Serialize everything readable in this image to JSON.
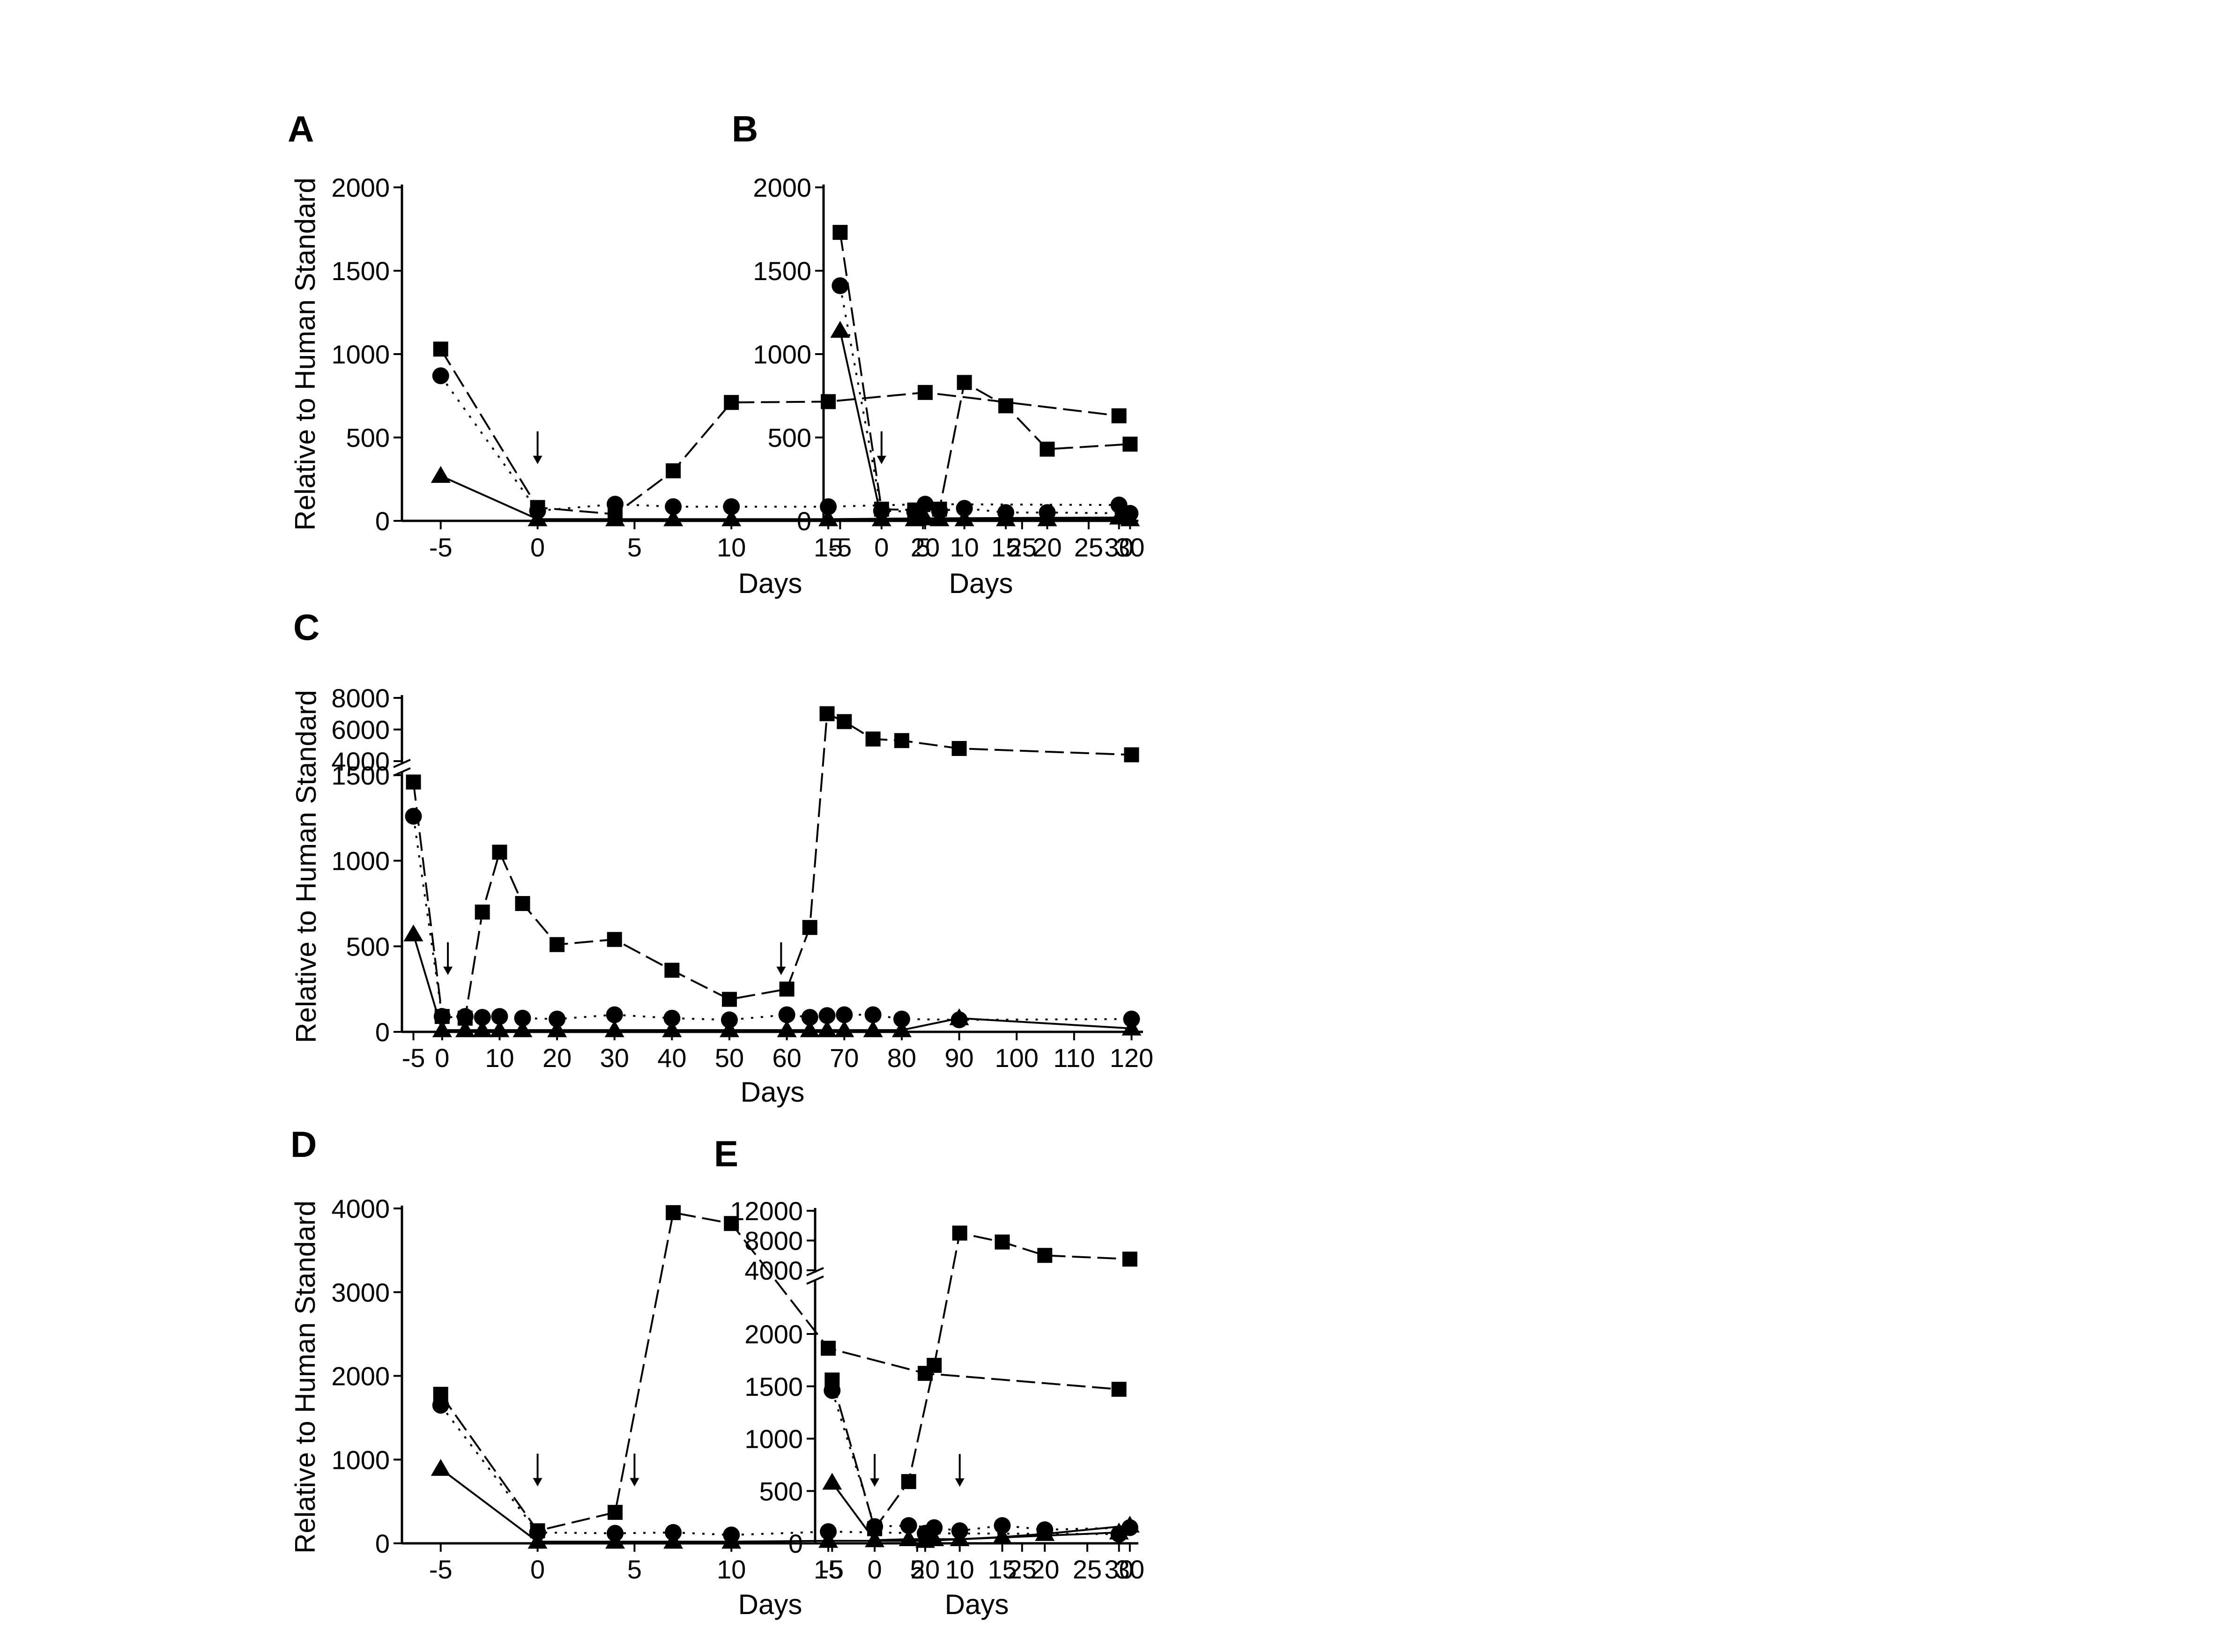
{
  "chart_data": [
    {
      "panel": "A",
      "type": "line",
      "xlabel": "Days",
      "ylabel": "Relative to Human Standard",
      "xticks": [
        -5,
        0,
        5,
        10,
        15,
        20,
        25,
        30
      ],
      "yticks": [
        0,
        500,
        1000,
        1500,
        2000
      ],
      "xlim": [
        -7,
        31
      ],
      "ylim": [
        0,
        2000
      ],
      "arrows_at_day": [
        0
      ],
      "series": [
        {
          "marker": "square",
          "x": [
            -5,
            0,
            4,
            7,
            10,
            15,
            20,
            30
          ],
          "y": [
            1030,
            80,
            40,
            300,
            710,
            715,
            770,
            630
          ]
        },
        {
          "marker": "circle",
          "x": [
            -5,
            0,
            4,
            7,
            10,
            15,
            20,
            30
          ],
          "y": [
            870,
            60,
            100,
            85,
            85,
            85,
            100,
            95
          ]
        },
        {
          "marker": "triangle",
          "x": [
            -5,
            0,
            4,
            7,
            10,
            15,
            20,
            30
          ],
          "y": [
            270,
            10,
            10,
            10,
            10,
            10,
            15,
            20
          ]
        }
      ]
    },
    {
      "panel": "B",
      "type": "line",
      "xlabel": "Days",
      "ylabel": "",
      "xticks": [
        -5,
        0,
        5,
        10,
        15,
        20,
        25,
        30
      ],
      "yticks": [
        0,
        500,
        1000,
        1500,
        2000
      ],
      "xlim": [
        -7,
        31
      ],
      "ylim": [
        0,
        2000
      ],
      "arrows_at_day": [
        0
      ],
      "series": [
        {
          "marker": "square",
          "x": [
            -5,
            0,
            4,
            7,
            10,
            15,
            20,
            30
          ],
          "y": [
            1730,
            70,
            65,
            70,
            830,
            690,
            430,
            460
          ]
        },
        {
          "marker": "circle",
          "x": [
            -5,
            0,
            4,
            7,
            10,
            15,
            20,
            30
          ],
          "y": [
            1410,
            60,
            55,
            60,
            75,
            50,
            50,
            45
          ]
        },
        {
          "marker": "triangle",
          "x": [
            -5,
            0,
            4,
            7,
            10,
            15,
            20,
            30
          ],
          "y": [
            1140,
            10,
            10,
            10,
            10,
            10,
            10,
            10
          ]
        }
      ]
    },
    {
      "panel": "C",
      "type": "line",
      "xlabel": "Days",
      "ylabel": "Relative to Human Standard",
      "xticks": [
        -5,
        0,
        10,
        20,
        30,
        40,
        50,
        60,
        70,
        80,
        90,
        100,
        110,
        120
      ],
      "yticks_lower": [
        0,
        500,
        1000,
        1500
      ],
      "yticks_upper": [
        4000,
        6000,
        8000
      ],
      "broken_axis": true,
      "xlim": [
        -7,
        122
      ],
      "arrows_at_day": [
        1,
        59
      ],
      "series": [
        {
          "marker": "square",
          "x": [
            -5,
            0,
            4,
            7,
            10,
            14,
            20,
            30,
            40,
            50,
            60,
            64,
            67,
            70,
            75,
            80,
            90,
            120
          ],
          "y": [
            1460,
            90,
            80,
            700,
            1050,
            750,
            510,
            540,
            360,
            190,
            250,
            610,
            7000,
            6500,
            5400,
            5300,
            4800,
            4400
          ]
        },
        {
          "marker": "circle",
          "x": [
            -5,
            0,
            4,
            7,
            10,
            14,
            20,
            30,
            40,
            50,
            60,
            64,
            67,
            70,
            75,
            80,
            90,
            120
          ],
          "y": [
            1260,
            90,
            90,
            85,
            90,
            80,
            75,
            100,
            80,
            70,
            100,
            85,
            95,
            100,
            100,
            75,
            70,
            75
          ]
        },
        {
          "marker": "triangle",
          "x": [
            -5,
            0,
            4,
            7,
            10,
            14,
            20,
            30,
            40,
            50,
            60,
            64,
            67,
            70,
            75,
            80,
            90,
            120
          ],
          "y": [
            570,
            10,
            10,
            10,
            10,
            10,
            10,
            10,
            10,
            10,
            10,
            10,
            10,
            10,
            10,
            10,
            80,
            20
          ]
        }
      ]
    },
    {
      "panel": "D",
      "type": "line",
      "xlabel": "Days",
      "ylabel": "Relative to Human Standard",
      "xticks": [
        -5,
        0,
        5,
        10,
        15,
        20,
        25,
        30
      ],
      "yticks": [
        0,
        1000,
        2000,
        3000,
        4000
      ],
      "xlim": [
        -7,
        31
      ],
      "ylim": [
        0,
        4000
      ],
      "arrows_at_day": [
        0,
        5
      ],
      "series": [
        {
          "marker": "square",
          "x": [
            -5,
            0,
            4,
            7,
            10,
            15,
            20,
            30
          ],
          "y": [
            1780,
            150,
            370,
            3950,
            3820,
            2330,
            2030,
            1840
          ]
        },
        {
          "marker": "circle",
          "x": [
            -5,
            0,
            4,
            7,
            10,
            15,
            20,
            30
          ],
          "y": [
            1650,
            130,
            120,
            130,
            100,
            140,
            120,
            110
          ]
        },
        {
          "marker": "triangle",
          "x": [
            -5,
            0,
            4,
            7,
            10,
            15,
            20,
            30
          ],
          "y": [
            890,
            20,
            20,
            20,
            20,
            30,
            30,
            130
          ]
        }
      ]
    },
    {
      "panel": "E",
      "type": "line",
      "xlabel": "Days",
      "ylabel": "",
      "xticks": [
        -5,
        0,
        5,
        10,
        15,
        20,
        25,
        30
      ],
      "yticks_lower": [
        0,
        500,
        1000,
        1500,
        2000
      ],
      "yticks_upper": [
        4000,
        8000,
        12000
      ],
      "broken_axis": true,
      "xlim": [
        -7,
        31
      ],
      "arrows_at_day": [
        0,
        10
      ],
      "series": [
        {
          "marker": "square",
          "x": [
            -5,
            0,
            4,
            7,
            10,
            15,
            20,
            30
          ],
          "y": [
            1560,
            140,
            590,
            1700,
            9000,
            7800,
            6000,
            5500
          ]
        },
        {
          "marker": "circle",
          "x": [
            -5,
            0,
            4,
            7,
            10,
            15,
            20,
            30
          ],
          "y": [
            1460,
            160,
            170,
            150,
            120,
            170,
            130,
            150
          ]
        },
        {
          "marker": "triangle",
          "x": [
            -5,
            0,
            4,
            7,
            10,
            15,
            20,
            30
          ],
          "y": [
            580,
            30,
            40,
            40,
            40,
            60,
            90,
            170
          ]
        }
      ]
    }
  ]
}
